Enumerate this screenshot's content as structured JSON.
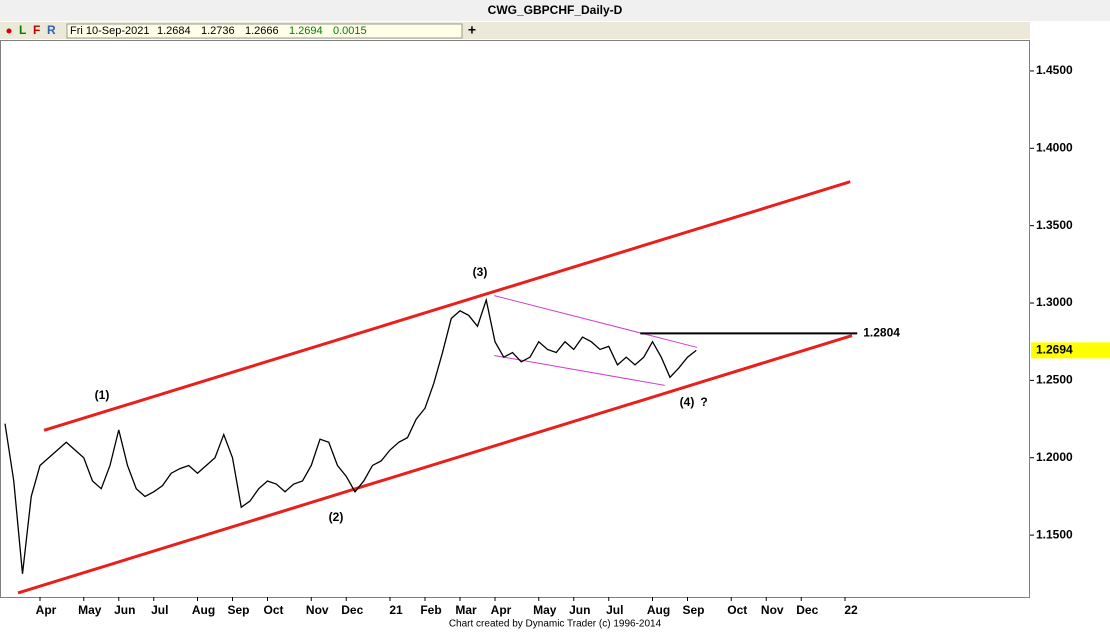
{
  "chart_data": {
    "type": "line",
    "title": "CWG_GBPCHF_Daily-D",
    "categories": [
      null,
      null,
      null,
      null,
      "Apr",
      null,
      null,
      null,
      null,
      "May",
      null,
      null,
      null,
      "Jun",
      null,
      null,
      null,
      "Jul",
      null,
      null,
      null,
      null,
      "Aug",
      null,
      null,
      null,
      "Sep",
      null,
      null,
      null,
      "Oct",
      null,
      null,
      null,
      null,
      "Nov",
      null,
      null,
      null,
      "Dec",
      null,
      null,
      null,
      null,
      "21",
      null,
      null,
      null,
      "Feb",
      null,
      null,
      null,
      "Mar",
      null,
      null,
      null,
      "Apr",
      null,
      null,
      null,
      null,
      "May",
      null,
      null,
      null,
      "Jun",
      null,
      null,
      null,
      "Jul",
      null,
      null,
      null,
      null,
      "Aug",
      null,
      null,
      null,
      "Sep",
      null,
      null,
      null,
      null,
      "Oct",
      null,
      null,
      null,
      "Nov",
      null,
      null,
      null,
      "Dec",
      null,
      null,
      null,
      null,
      "22",
      null,
      null,
      null,
      null,
      null,
      null,
      null,
      null,
      null,
      null,
      null,
      null,
      null,
      null,
      null,
      null,
      null,
      null,
      null,
      null,
      null
    ],
    "series": [
      {
        "color": "#000000",
        "values": [
          1.222,
          1.185,
          1.125,
          1.175,
          1.195,
          1.2,
          1.205,
          1.21,
          1.205,
          1.2,
          1.185,
          1.18,
          1.195,
          1.218,
          1.195,
          1.18,
          1.175,
          1.178,
          1.182,
          1.19,
          1.193,
          1.195,
          1.19,
          1.195,
          1.2,
          1.215,
          1.2,
          1.168,
          1.172,
          1.18,
          1.185,
          1.183,
          1.178,
          1.183,
          1.185,
          1.195,
          1.212,
          1.21,
          1.195,
          1.188,
          1.178,
          1.185,
          1.195,
          1.198,
          1.205,
          1.21,
          1.213,
          1.225,
          1.232,
          1.248,
          1.268,
          1.29,
          1.295,
          1.292,
          1.285,
          1.302,
          1.275,
          1.265,
          1.268,
          1.262,
          1.265,
          1.275,
          1.27,
          1.268,
          1.275,
          1.27,
          1.278,
          1.275,
          1.27,
          1.272,
          1.26,
          1.265,
          1.26,
          1.265,
          1.275,
          1.265,
          1.252,
          1.258,
          1.265,
          1.2694,
          null,
          null,
          null,
          null,
          null,
          null,
          null,
          null,
          null,
          null,
          null,
          null,
          null,
          null,
          null,
          null,
          null,
          null,
          null,
          null,
          null,
          null,
          null,
          null,
          null,
          null,
          null,
          null,
          null,
          null,
          null,
          null,
          null,
          null,
          null,
          null,
          null,
          null
        ]
      }
    ],
    "ylim": [
      1.11,
      1.47
    ],
    "yticks": [
      {
        "value": 1.15,
        "label": "1.1500"
      },
      {
        "value": 1.2,
        "label": "1.2000"
      },
      {
        "value": 1.25,
        "label": "1.2500"
      },
      {
        "value": 1.3,
        "label": "1.3000"
      },
      {
        "value": 1.35,
        "label": "1.3500"
      },
      {
        "value": 1.4,
        "label": "1.4000"
      },
      {
        "value": 1.45,
        "label": "1.4500"
      }
    ],
    "trendlines": [
      {
        "color": "#e8201c",
        "x": [
          4.46,
          96.6
        ],
        "y": [
          1.2177,
          1.3784
        ]
      },
      {
        "color": "#e8201c",
        "x": [
          1.49,
          96.8
        ],
        "y": [
          1.1126,
          1.279
        ]
      },
      {
        "color": "#d040d0",
        "x": [
          55.9,
          79.1
        ],
        "y": [
          1.3048,
          1.2713
        ]
      },
      {
        "color": "#d040d0",
        "x": [
          55.9,
          75.4
        ],
        "y": [
          1.2661,
          1.2468
        ]
      },
      {
        "color": "#000000",
        "x": [
          72.6,
          97.4
        ],
        "y": [
          1.2804,
          1.2804
        ]
      }
    ],
    "annotations": [
      "(1)",
      "(2)",
      "(3)",
      "(4)",
      "?"
    ]
  },
  "toolbar": {
    "buttons": [
      "L",
      "F",
      "R"
    ],
    "date": "Fri 10-Sep-2021",
    "open": 1.2684,
    "high": 1.2736,
    "low": 1.2666,
    "close": 1.2694,
    "change": 0.0015
  },
  "footer": "Chart created by Dynamic Trader  (c)  1996-2014"
}
